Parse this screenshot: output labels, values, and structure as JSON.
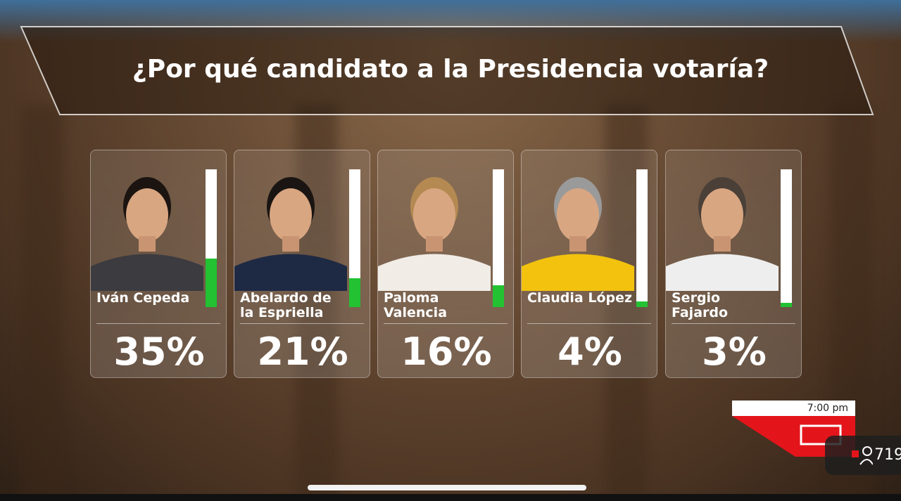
{
  "chart_data": {
    "type": "bar",
    "title": "¿Por qué candidato a la Presidencia votaría?",
    "categories": [
      "Iván Cepeda",
      "Abelardo de la Espriella",
      "Paloma Valencia",
      "Claudia López",
      "Sergio Fajardo"
    ],
    "values": [
      35,
      21,
      16,
      4,
      3
    ],
    "value_labels": [
      "35%",
      "21%",
      "16%",
      "4%",
      "3%"
    ],
    "ylim": [
      0,
      100
    ],
    "color": "#22c232"
  },
  "broadcast": {
    "time": "7:00 pm",
    "viewers": "719"
  }
}
